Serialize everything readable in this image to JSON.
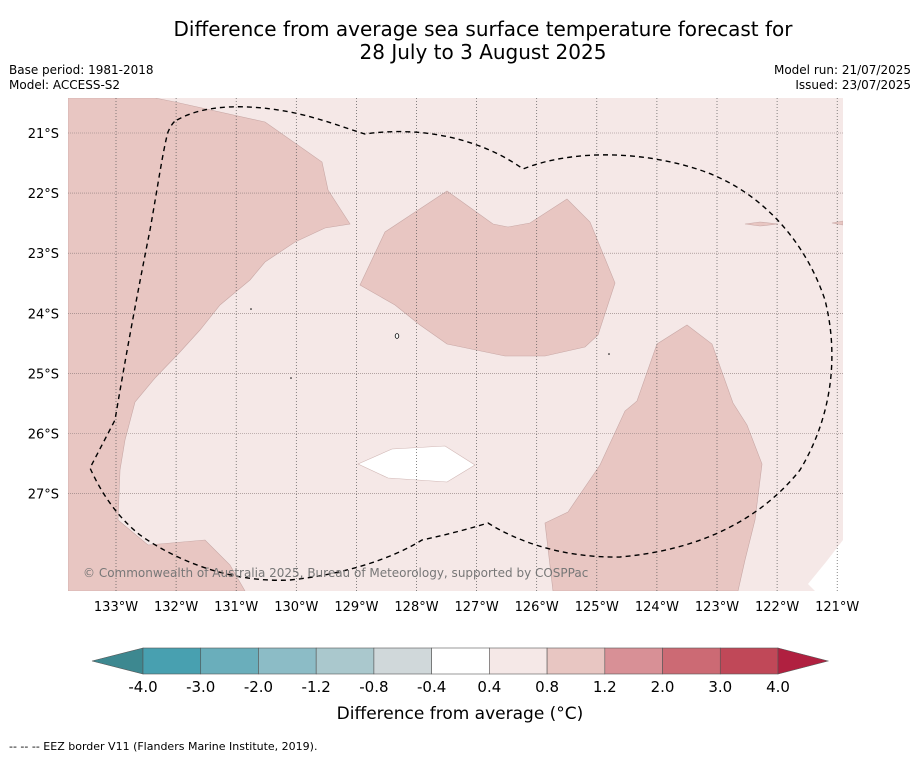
{
  "title_line1": "Difference from average sea surface temperature forecast for",
  "title_line2": "28 July to 3 August 2025",
  "base_period": "Base period: 1981-2018",
  "model": "Model: ACCESS-S2",
  "model_run": "Model run: 21/07/2025",
  "issued": "Issued: 23/07/2025",
  "copyright": "© Commonwealth of Australia 2025, Bureau of Meteorology, supported by COSPPac",
  "colorbar_label": "Difference from average (°C)",
  "footer": "--  --  -- EEZ border V11 (Flanders Marine Institute, 2019).",
  "lat_labels": [
    "21°S",
    "22°S",
    "23°S",
    "24°S",
    "25°S",
    "26°S",
    "27°S"
  ],
  "lon_labels": [
    "133°W",
    "132°W",
    "131°W",
    "130°W",
    "129°W",
    "128°W",
    "127°W",
    "126°W",
    "125°W",
    "124°W",
    "123°W",
    "122°W",
    "121°W"
  ],
  "colorbar": {
    "ticks": [
      "-4.0",
      "-3.0",
      "-2.0",
      "-1.2",
      "-0.8",
      "-0.4",
      "0.4",
      "0.8",
      "1.2",
      "2.0",
      "3.0",
      "4.0"
    ],
    "colors": [
      "#48a0b0",
      "#6aaebb",
      "#8cbcc6",
      "#aac8cd",
      "#d0d8da",
      "#ffffff",
      "#f5e8e7",
      "#e8c6c2",
      "#d89096",
      "#cc6a74",
      "#c04858"
    ],
    "under_color": "#3d8890",
    "over_color": "#b02040"
  },
  "map_colors": {
    "background": "#f5e8e7",
    "warm_patch": "#e8c6c2",
    "neutral_patch": "#ffffff"
  }
}
